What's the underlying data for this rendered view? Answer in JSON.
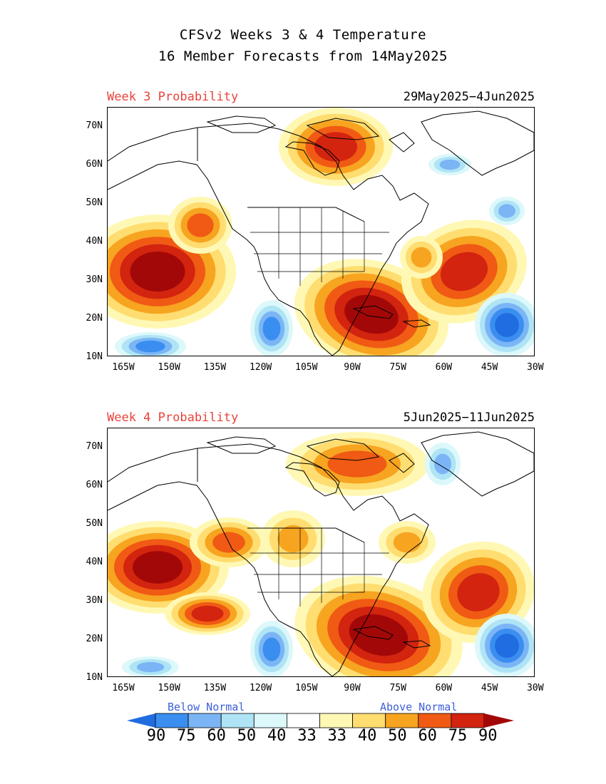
{
  "title_line1": "CFSv2 Weeks 3 & 4 Temperature",
  "title_line2": "16 Member Forecasts from 14May2025",
  "panels": [
    {
      "label": "Week 3 Probability",
      "dates": "29May2025−4Jun2025"
    },
    {
      "label": "Week 4 Probability",
      "dates": "5Jun2025−11Jun2025"
    }
  ],
  "lat_ticks": [
    "70N",
    "60N",
    "50N",
    "40N",
    "30N",
    "20N",
    "10N"
  ],
  "lon_ticks": [
    "165W",
    "150W",
    "135W",
    "120W",
    "105W",
    "90W",
    "75W",
    "60W",
    "45W",
    "30W"
  ],
  "legend": {
    "below_label": "Below Normal",
    "above_label": "Above Normal",
    "values": [
      "90",
      "75",
      "60",
      "50",
      "40",
      "33",
      "33",
      "40",
      "50",
      "60",
      "75",
      "90"
    ],
    "colors": [
      "#1f6de0",
      "#3a8ef0",
      "#7bb5f5",
      "#aee4f5",
      "#ddf8fa",
      "#ffffff",
      "#fff8b5",
      "#ffdd70",
      "#f7a420",
      "#f05a14",
      "#d2240f",
      "#a30808"
    ]
  },
  "colors": {
    "probability_label": "#e8433b",
    "legend_text": "#3c5fd8"
  }
}
